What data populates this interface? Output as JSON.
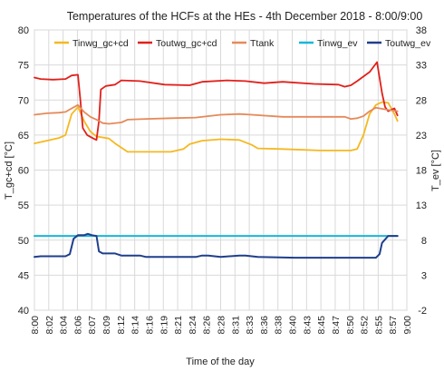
{
  "chart_data": {
    "type": "line",
    "title": "Temperatures of the HCFs at the HEs - 4th December 2018 - 8:00/9:00",
    "xlabel": "Time of the day",
    "ylabel_left": "T_gc+cd [°C]",
    "ylabel_right": "T_ev [°C]",
    "ylim_left": [
      40,
      80
    ],
    "ylim_right": [
      -2,
      38
    ],
    "yticks_left": [
      40,
      45,
      50,
      55,
      60,
      65,
      70,
      75,
      80
    ],
    "yticks_right": [
      -2,
      3,
      8,
      13,
      18,
      23,
      28,
      33,
      38
    ],
    "xticks": [
      "8:00",
      "8:02",
      "8:04",
      "8:06",
      "8:07",
      "8:09",
      "8:12",
      "8:14",
      "8:16",
      "8:19",
      "8:21",
      "8:24",
      "8:26",
      "8:28",
      "8:31",
      "8:33",
      "8:36",
      "8:38",
      "8:40",
      "8:43",
      "8:45",
      "8:47",
      "8:50",
      "8:52",
      "8:55",
      "8:57",
      "9:00"
    ],
    "grid": true,
    "legend_position": "top",
    "series": [
      {
        "name": "Tinwg_gc+cd",
        "axis": "left",
        "color": "#F5B820",
        "points": [
          [
            0,
            63.8
          ],
          [
            2,
            64.2
          ],
          [
            4,
            64.6
          ],
          [
            5,
            65
          ],
          [
            6,
            68
          ],
          [
            7,
            69
          ],
          [
            8,
            67
          ],
          [
            9,
            65.5
          ],
          [
            10,
            64.8
          ],
          [
            12,
            64.5
          ],
          [
            13,
            63.8
          ],
          [
            14,
            63.2
          ],
          [
            15,
            62.6
          ],
          [
            18,
            62.6
          ],
          [
            22,
            62.6
          ],
          [
            24,
            63
          ],
          [
            25,
            63.7
          ],
          [
            27,
            64.2
          ],
          [
            30,
            64.4
          ],
          [
            33,
            64.3
          ],
          [
            35,
            63.6
          ],
          [
            36,
            63.1
          ],
          [
            40,
            63
          ],
          [
            46,
            62.8
          ],
          [
            51,
            62.8
          ],
          [
            52,
            63
          ],
          [
            53,
            65
          ],
          [
            54,
            68
          ],
          [
            55,
            69.3
          ],
          [
            56,
            69.7
          ],
          [
            57,
            69.6
          ],
          [
            58,
            68
          ],
          [
            58.5,
            67
          ]
        ]
      },
      {
        "name": "Toutwg_gc+cd",
        "axis": "left",
        "color": "#E0201B",
        "points": [
          [
            0,
            73.2
          ],
          [
            1,
            73
          ],
          [
            3,
            72.9
          ],
          [
            5,
            73
          ],
          [
            6,
            73.5
          ],
          [
            7,
            73.6
          ],
          [
            7.4,
            70
          ],
          [
            7.8,
            66
          ],
          [
            8.5,
            65
          ],
          [
            9.5,
            64.5
          ],
          [
            10,
            64.3
          ],
          [
            10.4,
            67
          ],
          [
            10.7,
            71.5
          ],
          [
            11.5,
            72
          ],
          [
            13,
            72.2
          ],
          [
            14,
            72.8
          ],
          [
            17,
            72.7
          ],
          [
            21,
            72.2
          ],
          [
            25,
            72.1
          ],
          [
            27,
            72.6
          ],
          [
            31,
            72.8
          ],
          [
            34,
            72.7
          ],
          [
            37,
            72.4
          ],
          [
            40,
            72.6
          ],
          [
            45,
            72.3
          ],
          [
            49,
            72.2
          ],
          [
            50,
            71.9
          ],
          [
            51,
            72.1
          ],
          [
            52,
            72.7
          ],
          [
            54,
            74
          ],
          [
            55.2,
            75.4
          ],
          [
            56,
            71
          ],
          [
            56.5,
            69
          ],
          [
            57,
            68.4
          ],
          [
            58,
            68.8
          ],
          [
            58.5,
            67.8
          ]
        ]
      },
      {
        "name": "Ttank",
        "axis": "left",
        "color": "#E58A5A",
        "points": [
          [
            0,
            67.9
          ],
          [
            2,
            68.1
          ],
          [
            4,
            68.2
          ],
          [
            5,
            68.3
          ],
          [
            6,
            68.8
          ],
          [
            7,
            69.3
          ],
          [
            8,
            68.3
          ],
          [
            9,
            67.6
          ],
          [
            10,
            67.2
          ],
          [
            11,
            66.7
          ],
          [
            12,
            66.6
          ],
          [
            14,
            66.8
          ],
          [
            15,
            67.2
          ],
          [
            18,
            67.3
          ],
          [
            22,
            67.4
          ],
          [
            26,
            67.5
          ],
          [
            30,
            67.9
          ],
          [
            33,
            68
          ],
          [
            35,
            67.9
          ],
          [
            40,
            67.6
          ],
          [
            45,
            67.6
          ],
          [
            50,
            67.6
          ],
          [
            51,
            67.3
          ],
          [
            52,
            67.4
          ],
          [
            53,
            67.7
          ],
          [
            54,
            68.4
          ],
          [
            55,
            68.9
          ],
          [
            57,
            68.6
          ],
          [
            58.5,
            68.4
          ]
        ]
      },
      {
        "name": "Tinwg_ev",
        "axis": "right",
        "color": "#14B8DA",
        "points": [
          [
            0,
            8.6
          ],
          [
            58.5,
            8.6
          ]
        ]
      },
      {
        "name": "Toutwg_ev",
        "axis": "right",
        "color": "#1F3F8C",
        "points": [
          [
            0,
            5.6
          ],
          [
            1,
            5.7
          ],
          [
            5,
            5.7
          ],
          [
            5.7,
            6
          ],
          [
            6.3,
            8.2
          ],
          [
            7,
            8.7
          ],
          [
            8,
            8.7
          ],
          [
            8.6,
            8.9
          ],
          [
            9.3,
            8.7
          ],
          [
            10,
            8.6
          ],
          [
            10.4,
            6.4
          ],
          [
            11,
            6.1
          ],
          [
            13,
            6.1
          ],
          [
            14,
            5.8
          ],
          [
            17,
            5.8
          ],
          [
            18,
            5.6
          ],
          [
            26,
            5.6
          ],
          [
            27,
            5.8
          ],
          [
            28,
            5.8
          ],
          [
            30,
            5.6
          ],
          [
            33,
            5.8
          ],
          [
            34,
            5.8
          ],
          [
            36,
            5.6
          ],
          [
            42,
            5.5
          ],
          [
            50,
            5.5
          ],
          [
            55,
            5.5
          ],
          [
            55.6,
            6
          ],
          [
            56,
            7.6
          ],
          [
            57,
            8.6
          ],
          [
            58.5,
            8.6
          ]
        ]
      }
    ]
  }
}
